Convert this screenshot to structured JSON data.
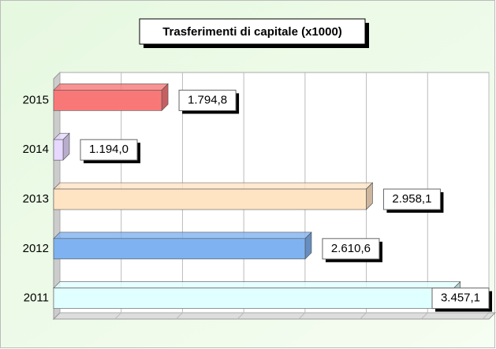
{
  "chart_data": {
    "type": "bar",
    "orientation": "horizontal",
    "title": "Trasferimenti di capitale (x1000)",
    "categories": [
      "2011",
      "2012",
      "2013",
      "2014",
      "2015"
    ],
    "values": [
      3457.1,
      2610.6,
      2958.1,
      1194.0,
      1794.8
    ],
    "value_labels": [
      "3.457,1",
      "2.610,6",
      "2.958,1",
      "1.194,0",
      "1.794,8"
    ],
    "colors": [
      "#e0ffff",
      "#7fb2f0",
      "#ffe4c4",
      "#e6d8ff",
      "#f87878"
    ],
    "xlim": [
      1180,
      3620
    ],
    "grid": true
  }
}
